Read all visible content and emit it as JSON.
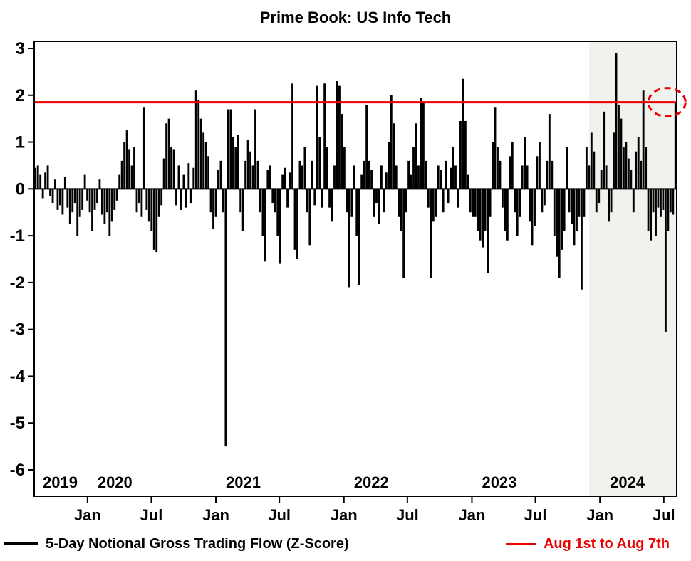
{
  "title": "Prime Book: US Info Tech",
  "legend": {
    "series_label": "5-Day Notional Gross Trading Flow (Z-Score)",
    "reference_label": "Aug 1st to Aug 7th"
  },
  "colors": {
    "bars": "#000000",
    "reference": "#ea0000",
    "shade": "#f0f2ed"
  },
  "chart_data": {
    "type": "bar",
    "title": "Prime Book: US Info Tech",
    "xlabel": "",
    "ylabel": "",
    "ylim": [
      -6,
      3
    ],
    "yticks": [
      3,
      2,
      1,
      0,
      -1,
      -2,
      -3,
      -4,
      -5,
      -6
    ],
    "grid": false,
    "legend_position": "bottom",
    "x_start": "2019-08-02",
    "x_end": "2024-08-07",
    "freq": "weekly",
    "series": [
      {
        "name": "5-Day Notional Gross Trading Flow (Z-Score)",
        "color": "#000000",
        "values": [
          0.45,
          0.5,
          0.3,
          -0.2,
          0.35,
          0.5,
          -0.15,
          -0.3,
          0.2,
          -0.45,
          -0.35,
          -0.55,
          0.25,
          -0.4,
          -0.75,
          -0.5,
          -0.3,
          -1.0,
          -0.6,
          -0.45,
          0.3,
          -0.25,
          -0.5,
          -0.9,
          -0.45,
          -0.3,
          0.2,
          -0.55,
          -0.75,
          -0.5,
          -1.0,
          -0.7,
          -0.45,
          -0.25,
          0.3,
          0.6,
          1.0,
          1.25,
          0.85,
          0.5,
          0.9,
          -0.5,
          -0.3,
          -0.6,
          1.75,
          -0.45,
          -0.7,
          -0.9,
          -1.3,
          -1.35,
          -0.6,
          -0.35,
          0.65,
          1.4,
          1.5,
          0.9,
          0.85,
          -0.35,
          0.5,
          -0.45,
          0.3,
          -0.4,
          0.55,
          -0.3,
          0.45,
          2.1,
          1.9,
          1.5,
          1.2,
          1.0,
          0.7,
          -0.5,
          -0.85,
          -0.6,
          0.4,
          0.6,
          -0.5,
          -5.5,
          1.7,
          1.7,
          1.1,
          0.9,
          1.15,
          -0.5,
          -0.9,
          0.6,
          1.05,
          0.8,
          0.5,
          1.7,
          0.6,
          -0.5,
          -1.0,
          -1.55,
          0.4,
          0.5,
          -0.3,
          -0.5,
          -1.0,
          -1.6,
          0.3,
          0.45,
          -0.4,
          0.35,
          2.25,
          -1.3,
          -1.5,
          0.6,
          0.5,
          0.9,
          -0.5,
          -1.2,
          0.6,
          -0.35,
          2.2,
          1.1,
          -0.4,
          2.25,
          0.9,
          -0.4,
          -0.7,
          0.5,
          2.3,
          2.2,
          1.6,
          0.9,
          -0.5,
          -2.1,
          -0.6,
          0.5,
          -1.0,
          -2.05,
          0.3,
          0.6,
          1.8,
          0.6,
          0.4,
          -0.6,
          -0.3,
          -0.75,
          0.5,
          -0.5,
          0.35,
          1.0,
          2.0,
          1.4,
          0.5,
          -0.6,
          -0.9,
          -1.9,
          -0.5,
          0.6,
          0.3,
          0.9,
          1.4,
          0.5,
          1.95,
          1.85,
          0.6,
          -0.4,
          -1.9,
          -0.7,
          -0.6,
          0.5,
          0.4,
          -0.5,
          0.6,
          -0.3,
          0.45,
          0.9,
          0.5,
          -0.4,
          1.45,
          2.35,
          1.45,
          0.3,
          -0.5,
          -0.6,
          -0.6,
          -0.9,
          -1.1,
          -1.25,
          -0.9,
          -1.8,
          -0.6,
          1.0,
          1.75,
          0.9,
          0.6,
          -0.4,
          -0.9,
          -1.1,
          0.7,
          1.0,
          -0.5,
          -1.0,
          -0.6,
          0.5,
          1.1,
          0.5,
          -0.7,
          -1.2,
          -0.8,
          0.7,
          1.0,
          -0.5,
          -0.35,
          0.6,
          1.6,
          0.6,
          -1.0,
          -1.45,
          -1.9,
          -1.3,
          -0.9,
          0.9,
          -0.5,
          -0.75,
          -1.2,
          -0.9,
          -0.6,
          -2.15,
          -0.6,
          0.9,
          0.5,
          1.2,
          0.8,
          -0.5,
          -0.3,
          0.4,
          1.65,
          0.5,
          -0.7,
          -0.5,
          1.2,
          2.9,
          1.8,
          1.5,
          0.9,
          1.0,
          0.65,
          0.4,
          -0.5,
          0.8,
          1.1,
          0.6,
          2.1,
          0.9,
          -0.9,
          -1.1,
          -0.5,
          -1.0,
          -0.4,
          -0.6,
          -0.45,
          -3.05,
          -0.9,
          -0.5,
          -0.55,
          1.85
        ]
      }
    ],
    "reference_line": {
      "label": "Aug 1st to Aug 7th",
      "value": 1.85,
      "color": "#ea0000"
    },
    "shaded_region": {
      "start": "2023-12-01",
      "end": "2024-08-07",
      "color": "#f0f2ed"
    },
    "annotations": [
      {
        "type": "dashed-circle",
        "x": "2024-08-07",
        "y": 1.85,
        "color": "#ea0000",
        "note": "latest reading circled at right edge"
      }
    ],
    "x_year_labels": [
      {
        "label": "2019",
        "date": "2019-08-02"
      },
      {
        "label": "2020",
        "date": "2020-01-01"
      },
      {
        "label": "2021",
        "date": "2021-01-01"
      },
      {
        "label": "2022",
        "date": "2022-01-01"
      },
      {
        "label": "2023",
        "date": "2023-01-01"
      },
      {
        "label": "2024",
        "date": "2024-01-01"
      }
    ],
    "x_month_ticks": [
      {
        "date": "2020-01-01",
        "label": "Jan"
      },
      {
        "date": "2020-07-01",
        "label": "Jul"
      },
      {
        "date": "2021-01-01",
        "label": "Jan"
      },
      {
        "date": "2021-07-01",
        "label": "Jul"
      },
      {
        "date": "2022-01-01",
        "label": "Jan"
      },
      {
        "date": "2022-07-01",
        "label": "Jul"
      },
      {
        "date": "2023-01-01",
        "label": "Jan"
      },
      {
        "date": "2023-07-01",
        "label": "Jul"
      },
      {
        "date": "2024-01-01",
        "label": "Jan"
      },
      {
        "date": "2024-07-01",
        "label": "Jul"
      }
    ]
  }
}
